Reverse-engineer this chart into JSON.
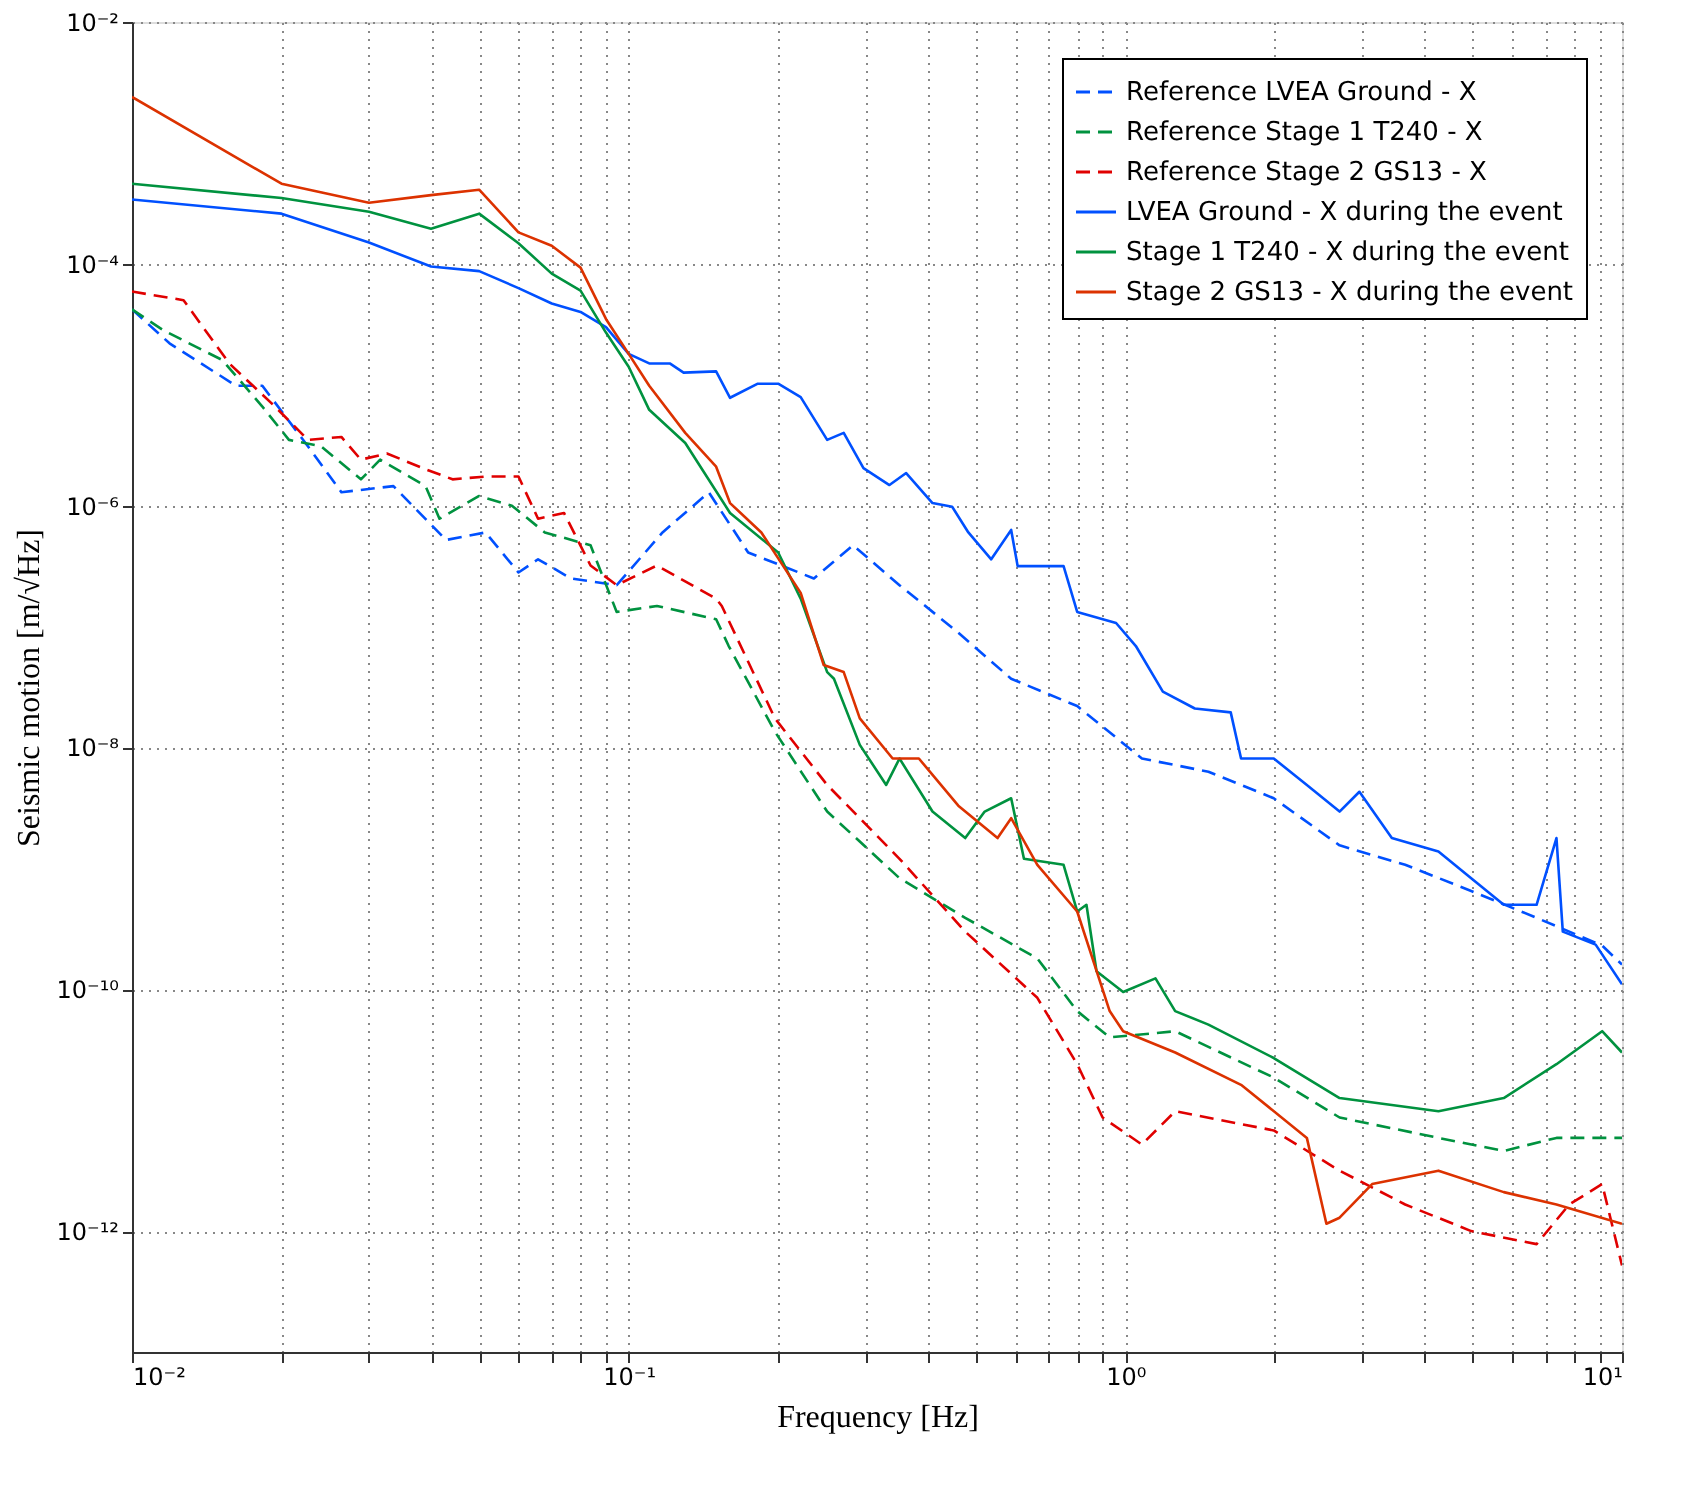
{
  "chart_data": {
    "type": "line",
    "xlabel": "Frequency [Hz]",
    "ylabel": "Seismic motion [m/√Hz]",
    "log": "xy",
    "grid": true,
    "legend": "top right",
    "xlim": [
      0.01,
      10
    ],
    "ylim": [
      1e-13,
      0.01
    ],
    "xticks": [
      {
        "value": 0.01,
        "label": "10⁻²"
      },
      {
        "value": 0.02,
        "label": null
      },
      {
        "value": 0.03,
        "label": null
      },
      {
        "value": 0.04,
        "label": null
      },
      {
        "value": 0.05,
        "label": null
      },
      {
        "value": 0.06,
        "label": null
      },
      {
        "value": 0.07,
        "label": null
      },
      {
        "value": 0.08,
        "label": null
      },
      {
        "value": 0.09,
        "label": null
      },
      {
        "value": 0.1,
        "label": "10⁻¹"
      },
      {
        "value": 0.2,
        "label": null
      },
      {
        "value": 0.3,
        "label": null
      },
      {
        "value": 0.4,
        "label": null
      },
      {
        "value": 0.5,
        "label": null
      },
      {
        "value": 0.6,
        "label": null
      },
      {
        "value": 0.7,
        "label": null
      },
      {
        "value": 0.8,
        "label": null
      },
      {
        "value": 0.9,
        "label": null
      },
      {
        "value": 1,
        "label": "10⁰"
      },
      {
        "value": 2,
        "label": null
      },
      {
        "value": 3,
        "label": null
      },
      {
        "value": 4,
        "label": null
      },
      {
        "value": 5,
        "label": null
      },
      {
        "value": 6,
        "label": null
      },
      {
        "value": 7,
        "label": null
      },
      {
        "value": 8,
        "label": null
      },
      {
        "value": 9,
        "label": null
      },
      {
        "value": 10,
        "label": "10¹"
      }
    ],
    "yticks": [
      {
        "value": 1e-12,
        "label": "10⁻¹²"
      },
      {
        "value": 1e-10,
        "label": "10⁻¹⁰"
      },
      {
        "value": 1e-08,
        "label": "10⁻⁸"
      },
      {
        "value": 1e-06,
        "label": "10⁻⁶"
      },
      {
        "value": 0.0001,
        "label": "10⁻⁴"
      },
      {
        "value": 0.01,
        "label": "10⁻²"
      }
    ],
    "series": [
      {
        "name": "Reference LVEA Ground - X",
        "color": "#0050ff",
        "line_style": "dashed",
        "x": [
          0.01,
          0.0119,
          0.0162,
          0.0183,
          0.0226,
          0.0264,
          0.0336,
          0.0429,
          0.0515,
          0.06,
          0.0657,
          0.0765,
          0.0946,
          0.117,
          0.145,
          0.174,
          0.236,
          0.283,
          0.351,
          0.461,
          0.589,
          0.8,
          1.08,
          1.47,
          1.99,
          2.7,
          3.66,
          4.97,
          6.73,
          9.12,
          10
        ],
        "values": [
          4.2e-05,
          2.2e-05,
          9.8e-06,
          9.8e-06,
          3.1e-06,
          1.29e-06,
          1.45e-06,
          5.2e-07,
          6e-07,
          2.8e-07,
          3.6e-07,
          2.5e-07,
          2.2e-07,
          6e-07,
          1.29e-06,
          4.1e-07,
          2.5e-07,
          4.7e-07,
          2.2e-07,
          8.9e-08,
          3.7e-08,
          2.2e-08,
          8.1e-09,
          6.3e-09,
          3.8e-09,
          1.55e-09,
          1.07e-09,
          6.5e-10,
          3.9e-10,
          2.3e-10,
          1.6e-10
        ]
      },
      {
        "name": "Reference Stage 1 T240 - X",
        "color": "#00923f",
        "line_style": "dashed",
        "x": [
          0.01,
          0.0116,
          0.0152,
          0.0183,
          0.0207,
          0.024,
          0.0289,
          0.0316,
          0.039,
          0.0416,
          0.0499,
          0.0582,
          0.0678,
          0.0838,
          0.0946,
          0.114,
          0.15,
          0.159,
          0.197,
          0.251,
          0.351,
          0.476,
          0.665,
          0.8,
          0.93,
          1.26,
          1.99,
          2.7,
          4.27,
          5.78,
          7.38,
          10
        ],
        "values": [
          4.2e-05,
          2.8e-05,
          1.6e-05,
          6.6e-06,
          3.5e-06,
          3.1e-06,
          1.65e-06,
          2.4e-06,
          1.45e-06,
          7.8e-07,
          1.2e-06,
          1e-06,
          6e-07,
          4.7e-07,
          1.32e-07,
          1.48e-07,
          1.15e-07,
          6.9e-08,
          1.35e-08,
          2.95e-09,
          8.3e-10,
          3.9e-10,
          1.8e-10,
          6.6e-11,
          4e-11,
          4.5e-11,
          1.86e-11,
          8.7e-12,
          5.9e-12,
          4.6e-12,
          5.9e-12,
          5.9e-12
        ]
      },
      {
        "name": "Reference Stage 2 GS13 - X",
        "color": "#e00000",
        "line_style": "dashed",
        "x": [
          0.01,
          0.0127,
          0.0157,
          0.0194,
          0.0226,
          0.0264,
          0.0289,
          0.0326,
          0.039,
          0.0442,
          0.0515,
          0.06,
          0.0657,
          0.0741,
          0.0838,
          0.0946,
          0.114,
          0.15,
          0.154,
          0.197,
          0.251,
          0.351,
          0.476,
          0.665,
          0.8,
          0.9,
          1.08,
          1.26,
          1.99,
          2.7,
          3.66,
          4.97,
          6.73,
          7.83,
          9.12,
          10
        ],
        "values": [
          5.9e-05,
          5e-05,
          1.5e-05,
          6.6e-06,
          3.5e-06,
          3.7e-06,
          2.4e-06,
          2.7e-06,
          2e-06,
          1.65e-06,
          1.74e-06,
          1.74e-06,
          7.8e-07,
          8.7e-07,
          3.2e-07,
          2.2e-07,
          3.2e-07,
          1.7e-07,
          1.48e-07,
          1.74e-08,
          4.9e-09,
          1.2e-09,
          3e-10,
          8.5e-11,
          2.4e-11,
          8.7e-12,
          5.2e-12,
          9.8e-12,
          6.8e-12,
          3.16e-12,
          1.66e-12,
          1e-12,
          7.8e-13,
          1.66e-12,
          2.45e-12,
          5.2e-13
        ]
      },
      {
        "name": "LVEA Ground - X during the event",
        "color": "#0050ff",
        "line_style": "solid",
        "x": [
          0.01,
          0.02,
          0.03,
          0.04,
          0.05,
          0.06,
          0.07,
          0.08,
          0.09,
          0.1,
          0.11,
          0.121,
          0.129,
          0.15,
          0.16,
          0.182,
          0.2,
          0.222,
          0.251,
          0.271,
          0.297,
          0.335,
          0.362,
          0.409,
          0.448,
          0.483,
          0.537,
          0.589,
          0.607,
          0.751,
          0.8,
          0.958,
          1.05,
          1.19,
          1.38,
          1.63,
          1.71,
          1.99,
          2.32,
          2.7,
          2.96,
          3.44,
          4.27,
          4.97,
          5.78,
          6.73,
          7.38,
          7.6,
          8.85,
          10
        ],
        "values": [
          0.00034,
          0.00026,
          0.00015,
          9.5e-05,
          8.7e-05,
          6.3e-05,
          4.7e-05,
          4e-05,
          3e-05,
          1.8e-05,
          1.5e-05,
          1.5e-05,
          1.26e-05,
          1.29e-05,
          7.8e-06,
          1.02e-05,
          1.02e-05,
          7.9e-06,
          3.5e-06,
          4e-06,
          2.04e-06,
          1.48e-06,
          1.86e-06,
          1.05e-06,
          9.8e-07,
          6e-07,
          3.6e-07,
          6.3e-07,
          3.16e-07,
          3.16e-07,
          1.32e-07,
          1.07e-07,
          6.9e-08,
          2.9e-08,
          2.1e-08,
          1.95e-08,
          8.1e-09,
          8.1e-09,
          4.9e-09,
          2.95e-09,
          4.3e-09,
          1.78e-09,
          1.38e-09,
          8.3e-10,
          5e-10,
          5e-10,
          1.78e-09,
          3e-10,
          2.34e-10,
          1.1e-10
        ]
      },
      {
        "name": "Stage 1 T240 - X during the event",
        "color": "#00923f",
        "line_style": "solid",
        "x": [
          0.01,
          0.02,
          0.03,
          0.04,
          0.05,
          0.06,
          0.07,
          0.08,
          0.09,
          0.1,
          0.11,
          0.13,
          0.16,
          0.2,
          0.222,
          0.251,
          0.259,
          0.292,
          0.33,
          0.351,
          0.409,
          0.476,
          0.521,
          0.589,
          0.625,
          0.751,
          0.8,
          0.835,
          0.875,
          0.99,
          1.15,
          1.26,
          1.47,
          1.99,
          2.7,
          4.27,
          5.78,
          7.38,
          9.12,
          10
        ],
        "values": [
          0.00046,
          0.00035,
          0.00027,
          0.000195,
          0.00026,
          0.000148,
          8.3e-05,
          6e-05,
          2.7e-05,
          1.41e-05,
          6.2e-06,
          3.3e-06,
          8.7e-07,
          4.1e-07,
          1.7e-07,
          4.2e-08,
          3.7e-08,
          1.05e-08,
          4.9e-09,
          8.1e-09,
          2.95e-09,
          1.78e-09,
          2.95e-09,
          3.8e-09,
          1.2e-09,
          1.07e-09,
          4.4e-10,
          5e-10,
          1.41e-10,
          9.5e-11,
          1.23e-10,
          6.6e-11,
          5.1e-11,
          2.7e-11,
          1.26e-11,
          9.8e-12,
          1.26e-11,
          2.4e-11,
          4.5e-11,
          3e-11
        ]
      },
      {
        "name": "Stage 2 GS13 - X during the event",
        "color": "#dc3200",
        "line_style": "solid",
        "x": [
          0.01,
          0.02,
          0.03,
          0.04,
          0.05,
          0.06,
          0.07,
          0.08,
          0.09,
          0.1,
          0.11,
          0.13,
          0.15,
          0.16,
          0.185,
          0.222,
          0.247,
          0.271,
          0.292,
          0.34,
          0.384,
          0.461,
          0.553,
          0.589,
          0.665,
          0.8,
          0.93,
          0.99,
          1.26,
          1.71,
          2.32,
          2.54,
          2.7,
          3.14,
          4.27,
          5.78,
          7.38,
          10
        ],
        "values": [
          0.0024,
          0.00046,
          0.00032,
          0.00037,
          0.00041,
          0.000182,
          0.000141,
          9.3e-05,
          3.5e-05,
          1.8e-05,
          9.8e-06,
          4e-06,
          2.1e-06,
          1.05e-06,
          6e-07,
          1.9e-07,
          4.8e-08,
          4.2e-08,
          1.74e-08,
          8.1e-09,
          8.1e-09,
          3.3e-09,
          1.78e-09,
          2.6e-09,
          1.07e-09,
          4.4e-10,
          6.6e-11,
          4.5e-11,
          3e-11,
          1.62e-11,
          5.9e-12,
          1.15e-12,
          1.29e-12,
          2.45e-12,
          3.16e-12,
          2.1e-12,
          1.66e-12,
          1.15e-12
        ]
      }
    ]
  }
}
